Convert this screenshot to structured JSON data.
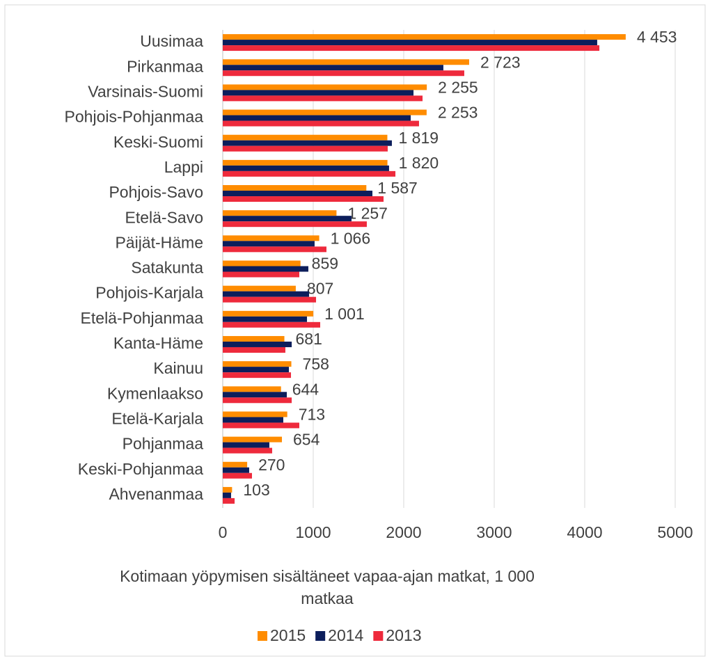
{
  "chart_data": {
    "type": "bar",
    "orientation": "horizontal",
    "x_label": "Kotimaan yöpymisen sisältäneet vapaa-ajan matkat, 1 000 matkaa",
    "categories": [
      "Uusimaa",
      "Pirkanmaa",
      "Varsinais-Suomi",
      "Pohjois-Pohjanmaa",
      "Keski-Suomi",
      "Lappi",
      "Pohjois-Savo",
      "Etelä-Savo",
      "Päijät-Häme",
      "Satakunta",
      "Pohjois-Karjala",
      "Etelä-Pohjanmaa",
      "Kanta-Häme",
      "Kainuu",
      "Kymenlaakso",
      "Etelä-Karjala",
      "Pohjanmaa",
      "Keski-Pohjanmaa",
      "Ahvenanmaa"
    ],
    "series": [
      {
        "name": "2015",
        "color": "#ff8c00",
        "values": [
          4453,
          2723,
          2255,
          2253,
          1819,
          1820,
          1587,
          1257,
          1066,
          859,
          807,
          1001,
          681,
          758,
          644,
          713,
          654,
          270,
          103
        ],
        "value_labels": [
          "4 453",
          "2 723",
          "2 255",
          "2 253",
          "1 819",
          "1 820",
          "1 587",
          "1 257",
          "1 066",
          "859",
          "807",
          "1 001",
          "681",
          "758",
          "644",
          "713",
          "654",
          "270",
          "103"
        ]
      },
      {
        "name": "2014",
        "color": "#0c1e5b",
        "values": [
          4138,
          2438,
          2108,
          2077,
          1869,
          1838,
          1654,
          1423,
          1015,
          946,
          954,
          931,
          762,
          731,
          708,
          669,
          515,
          292,
          92
        ]
      },
      {
        "name": "2013",
        "color": "#ee2a3c",
        "values": [
          4162,
          2669,
          2208,
          2169,
          1823,
          1908,
          1777,
          1592,
          1146,
          846,
          1031,
          1077,
          692,
          754,
          762,
          846,
          546,
          323,
          131
        ]
      }
    ],
    "xlim": [
      0,
      5000
    ],
    "xticks": [
      0,
      1000,
      2000,
      3000,
      4000,
      5000
    ],
    "grid": true,
    "legend": "bottom"
  }
}
